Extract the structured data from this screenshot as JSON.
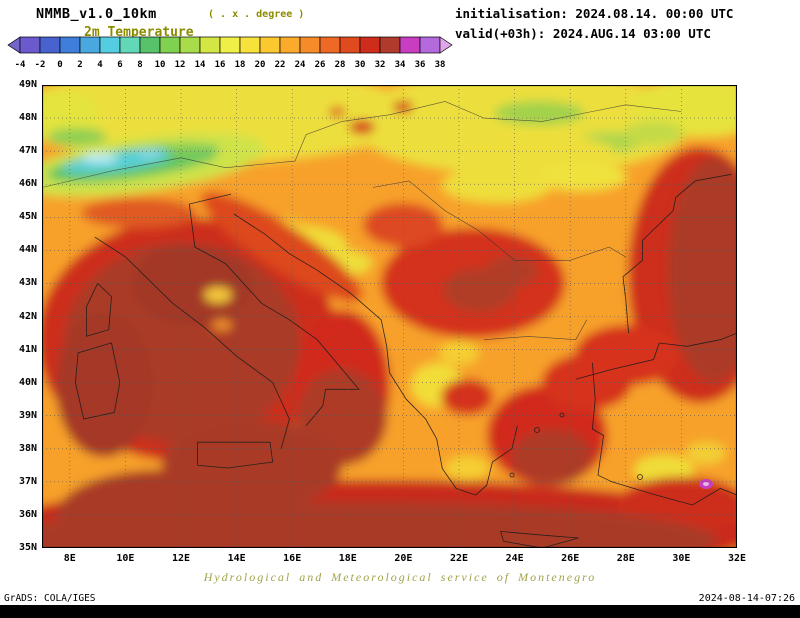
{
  "header": {
    "model_title": "NMMB_v1.0_10km",
    "grid_note": "( . x . degree )",
    "variable_title": "2m Temperature",
    "init_line": "initialisation: 2024.08.14. 00:00 UTC",
    "valid_line": "valid(+03h): 2024.AUG.14 03:00 UTC"
  },
  "colorbar": {
    "tick_labels": [
      "-4",
      "-2",
      "0",
      "2",
      "4",
      "6",
      "8",
      "10",
      "12",
      "14",
      "16",
      "18",
      "20",
      "22",
      "24",
      "26",
      "28",
      "30",
      "32",
      "34",
      "36",
      "38"
    ],
    "segment_colors": [
      "#6a5acd",
      "#4862d0",
      "#3f7fdb",
      "#49a8e0",
      "#55cde0",
      "#63d8b8",
      "#57c26a",
      "#7fd14f",
      "#a8dc4a",
      "#d2e644",
      "#f0ef48",
      "#f7e13a",
      "#fbc92f",
      "#fbab2c",
      "#f68c28",
      "#ee6a24",
      "#e04a1f",
      "#d02c1c",
      "#b03a2c",
      "#c93ec0",
      "#b469dd"
    ],
    "left_arrow_color": "#7463c8",
    "right_arrow_color": "#e0a6ec"
  },
  "map": {
    "lat_labels": [
      "49N",
      "48N",
      "47N",
      "46N",
      "45N",
      "44N",
      "43N",
      "42N",
      "41N",
      "40N",
      "39N",
      "38N",
      "37N",
      "36N",
      "35N"
    ],
    "lon_labels": [
      "8E",
      "10E",
      "12E",
      "14E",
      "16E",
      "18E",
      "20E",
      "22E",
      "24E",
      "26E",
      "28E",
      "30E",
      "32E"
    ]
  },
  "footer": {
    "credit": "Hydrological and Meteorological service of Montenegro",
    "grads": "GrADS: COLA/IGES",
    "timestamp": "2024-08-14-07:26"
  }
}
